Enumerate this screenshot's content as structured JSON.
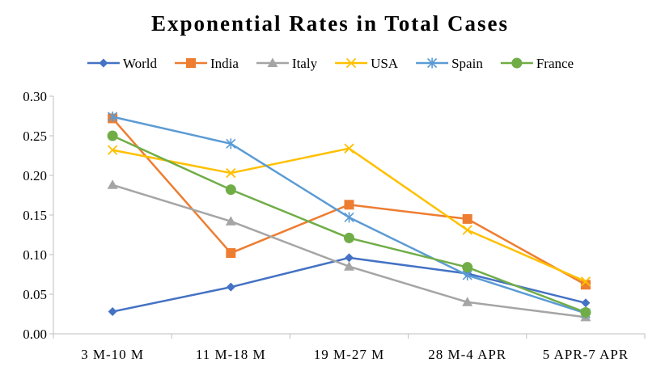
{
  "chart_data": {
    "type": "line",
    "title": "Exponential Rates in Total Cases",
    "xlabel": "",
    "ylabel": "",
    "categories": [
      "3 M-10 M",
      "11 M-18 M",
      "19 M-27 M",
      "28 M-4 APR",
      "5 APR-7 APR"
    ],
    "ylim": [
      0,
      0.3
    ],
    "yticks": [
      "0.00",
      "0.05",
      "0.10",
      "0.15",
      "0.20",
      "0.25",
      "0.30"
    ],
    "grid": false,
    "legend": "top",
    "series": [
      {
        "name": "World",
        "color": "#4472C4",
        "marker": "diamond",
        "values": [
          0.028,
          0.059,
          0.096,
          0.076,
          0.039
        ]
      },
      {
        "name": "India",
        "color": "#ED7D31",
        "marker": "square",
        "values": [
          0.272,
          0.102,
          0.163,
          0.145,
          0.062
        ]
      },
      {
        "name": "Italy",
        "color": "#A5A5A5",
        "marker": "triangle",
        "values": [
          0.188,
          0.142,
          0.085,
          0.04,
          0.021
        ]
      },
      {
        "name": "USA",
        "color": "#FFC000",
        "marker": "x",
        "values": [
          0.232,
          0.203,
          0.234,
          0.131,
          0.066
        ]
      },
      {
        "name": "Spain",
        "color": "#5B9BD5",
        "marker": "star",
        "values": [
          0.274,
          0.24,
          0.147,
          0.074,
          0.026
        ]
      },
      {
        "name": "France",
        "color": "#70AD47",
        "marker": "circle",
        "values": [
          0.25,
          0.182,
          0.121,
          0.084,
          0.027
        ]
      }
    ]
  }
}
